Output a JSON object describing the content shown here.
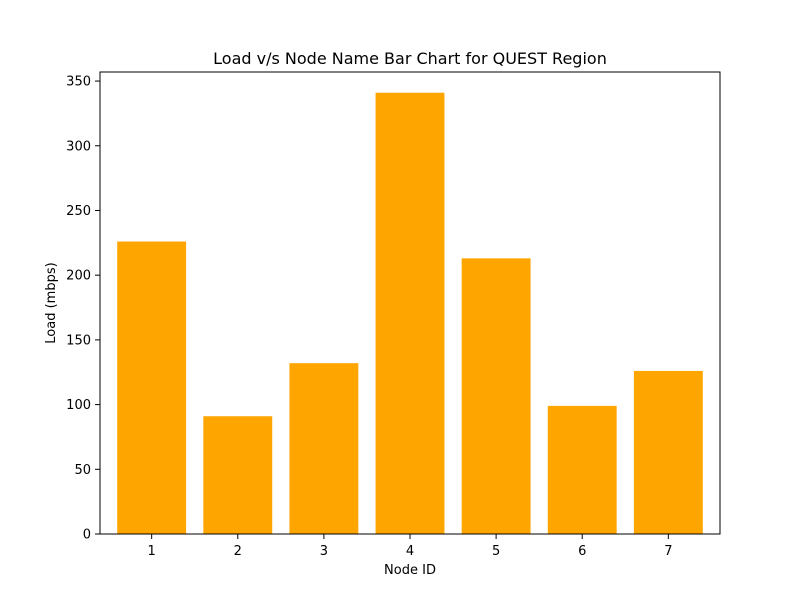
{
  "chart_data": {
    "type": "bar",
    "title": "Load v/s Node Name Bar Chart for QUEST Region",
    "xlabel": "Node ID",
    "ylabel": "Load (mbps)",
    "categories": [
      "1",
      "2",
      "3",
      "4",
      "5",
      "6",
      "7"
    ],
    "values": [
      226,
      91,
      132,
      341,
      213,
      99,
      126
    ],
    "ylim": [
      0,
      357
    ],
    "yticks": [
      0,
      50,
      100,
      150,
      200,
      250,
      300,
      350
    ],
    "grid": false,
    "legend": "none",
    "bar_color": "#ffa500"
  }
}
